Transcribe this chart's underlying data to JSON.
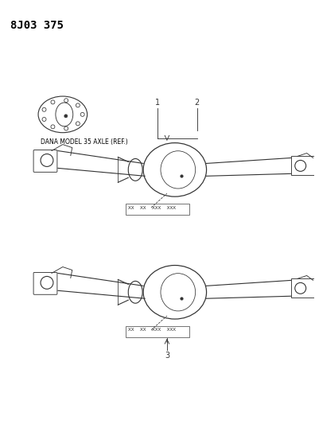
{
  "title": "8J03 375",
  "title_fontsize": 10,
  "bg_color": "#ffffff",
  "text_color": "#000000",
  "dana_label": "DANA MODEL 35 AXLE (REF.)",
  "label1": "1",
  "label2": "2",
  "label3": "3",
  "part_number_text1": "XX  XX  XXX  XXX",
  "part_number_text2": "XX  XX  XXX  XXX",
  "line_color": "#333333",
  "line_width": 0.8,
  "figsize": [
    3.96,
    5.33
  ],
  "dpi": 100
}
